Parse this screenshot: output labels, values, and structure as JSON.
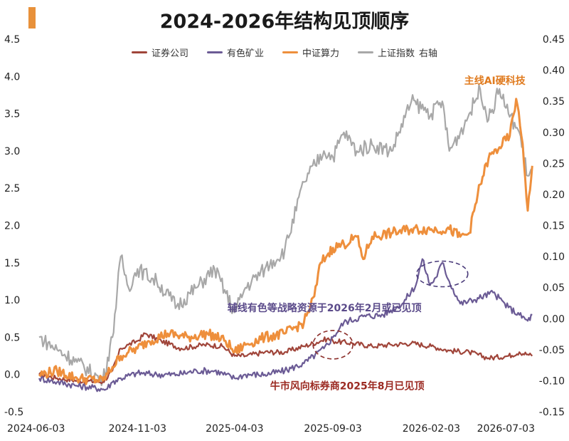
{
  "chart_data": {
    "type": "line",
    "title": "2024-2026年结构见顶顺序",
    "x_ticks": [
      "2024-06-03",
      "2024-11-03",
      "2025-04-03",
      "2025-09-03",
      "2026-02-03",
      "2026-07-03"
    ],
    "y_left": {
      "min": -0.5,
      "max": 4.5,
      "ticks": [
        "-0.5",
        "0.0",
        "0.5",
        "1.0",
        "1.5",
        "2.0",
        "2.5",
        "3.0",
        "3.5",
        "4.0",
        "4.5"
      ]
    },
    "y_right": {
      "label": "右轴",
      "min": -0.15,
      "max": 0.45,
      "ticks": [
        "-0.15",
        "-0.10",
        "-0.05",
        "0.00",
        "0.05",
        "0.10",
        "0.15",
        "0.20",
        "0.25",
        "0.30",
        "0.35",
        "0.40",
        "0.45"
      ]
    },
    "legend_position": "top-center",
    "series": [
      {
        "name": "证券公司",
        "color": "#A0453A",
        "axis": "left",
        "points": [
          [
            "2024-06-03",
            0.0
          ],
          [
            "2024-07-01",
            -0.05
          ],
          [
            "2024-08-01",
            -0.08
          ],
          [
            "2024-09-10",
            -0.1
          ],
          [
            "2024-09-25",
            0.05
          ],
          [
            "2024-10-08",
            0.35
          ],
          [
            "2024-10-20",
            0.4
          ],
          [
            "2024-11-03",
            0.45
          ],
          [
            "2024-11-15",
            0.55
          ],
          [
            "2024-12-10",
            0.45
          ],
          [
            "2025-01-10",
            0.35
          ],
          [
            "2025-02-15",
            0.4
          ],
          [
            "2025-03-15",
            0.38
          ],
          [
            "2025-04-03",
            0.25
          ],
          [
            "2025-04-20",
            0.25
          ],
          [
            "2025-05-20",
            0.3
          ],
          [
            "2025-06-20",
            0.3
          ],
          [
            "2025-07-20",
            0.38
          ],
          [
            "2025-08-15",
            0.45
          ],
          [
            "2025-08-25",
            0.48
          ],
          [
            "2025-09-03",
            0.45
          ],
          [
            "2025-10-03",
            0.42
          ],
          [
            "2025-11-03",
            0.38
          ],
          [
            "2025-12-03",
            0.4
          ],
          [
            "2026-01-03",
            0.42
          ],
          [
            "2026-02-03",
            0.38
          ],
          [
            "2026-03-03",
            0.32
          ],
          [
            "2026-04-03",
            0.3
          ],
          [
            "2026-05-03",
            0.22
          ],
          [
            "2026-06-03",
            0.25
          ],
          [
            "2026-06-20",
            0.3
          ],
          [
            "2026-07-03",
            0.27
          ],
          [
            "2026-07-10",
            0.25
          ]
        ]
      },
      {
        "name": "有色矿业",
        "color": "#6B5B95",
        "axis": "left",
        "points": [
          [
            "2024-06-03",
            -0.05
          ],
          [
            "2024-07-01",
            -0.1
          ],
          [
            "2024-08-01",
            -0.15
          ],
          [
            "2024-09-15",
            -0.2
          ],
          [
            "2024-09-25",
            -0.1
          ],
          [
            "2024-10-08",
            -0.05
          ],
          [
            "2024-11-03",
            0.02
          ],
          [
            "2024-12-03",
            0.0
          ],
          [
            "2025-01-03",
            0.0
          ],
          [
            "2025-02-03",
            0.05
          ],
          [
            "2025-03-03",
            0.05
          ],
          [
            "2025-04-03",
            -0.05
          ],
          [
            "2025-04-20",
            0.0
          ],
          [
            "2025-05-20",
            0.0
          ],
          [
            "2025-06-20",
            0.05
          ],
          [
            "2025-07-20",
            0.15
          ],
          [
            "2025-08-20",
            0.35
          ],
          [
            "2025-09-03",
            0.5
          ],
          [
            "2025-09-20",
            0.7
          ],
          [
            "2025-10-20",
            0.78
          ],
          [
            "2025-11-20",
            0.8
          ],
          [
            "2025-12-20",
            0.95
          ],
          [
            "2026-01-10",
            1.2
          ],
          [
            "2026-01-20",
            1.55
          ],
          [
            "2026-02-01",
            1.2
          ],
          [
            "2026-02-10",
            1.3
          ],
          [
            "2026-02-20",
            1.5
          ],
          [
            "2026-03-03",
            1.25
          ],
          [
            "2026-03-20",
            0.95
          ],
          [
            "2026-04-10",
            1.0
          ],
          [
            "2026-05-10",
            1.1
          ],
          [
            "2026-06-03",
            0.9
          ],
          [
            "2026-06-20",
            0.8
          ],
          [
            "2026-07-03",
            0.72
          ],
          [
            "2026-07-10",
            0.8
          ]
        ]
      },
      {
        "name": "中证算力",
        "color": "#EE8F3C",
        "axis": "left",
        "points": [
          [
            "2024-06-03",
            0.0
          ],
          [
            "2024-07-01",
            0.05
          ],
          [
            "2024-08-01",
            -0.05
          ],
          [
            "2024-09-10",
            -0.08
          ],
          [
            "2024-09-25",
            0.1
          ],
          [
            "2024-10-08",
            0.25
          ],
          [
            "2024-10-20",
            0.3
          ],
          [
            "2024-11-03",
            0.35
          ],
          [
            "2024-11-20",
            0.45
          ],
          [
            "2024-12-20",
            0.55
          ],
          [
            "2025-01-20",
            0.5
          ],
          [
            "2025-02-20",
            0.55
          ],
          [
            "2025-03-20",
            0.45
          ],
          [
            "2025-04-03",
            0.3
          ],
          [
            "2025-04-20",
            0.4
          ],
          [
            "2025-05-20",
            0.5
          ],
          [
            "2025-06-20",
            0.55
          ],
          [
            "2025-07-20",
            0.7
          ],
          [
            "2025-08-05",
            1.05
          ],
          [
            "2025-08-15",
            1.5
          ],
          [
            "2025-08-25",
            1.6
          ],
          [
            "2025-09-03",
            1.7
          ],
          [
            "2025-09-20",
            1.75
          ],
          [
            "2025-10-10",
            1.85
          ],
          [
            "2025-10-20",
            1.55
          ],
          [
            "2025-11-03",
            1.85
          ],
          [
            "2025-12-03",
            1.9
          ],
          [
            "2026-01-03",
            1.95
          ],
          [
            "2026-02-03",
            1.95
          ],
          [
            "2026-03-03",
            1.95
          ],
          [
            "2026-03-20",
            1.85
          ],
          [
            "2026-04-03",
            1.9
          ],
          [
            "2026-04-20",
            2.55
          ],
          [
            "2026-05-03",
            2.9
          ],
          [
            "2026-05-20",
            3.05
          ],
          [
            "2026-06-05",
            3.2
          ],
          [
            "2026-06-15",
            3.7
          ],
          [
            "2026-06-25",
            3.1
          ],
          [
            "2026-07-03",
            2.2
          ],
          [
            "2026-07-10",
            2.8
          ]
        ]
      },
      {
        "name": "上证指数",
        "color": "#A8A8A8",
        "axis": "right",
        "points": [
          [
            "2024-06-03",
            -0.03
          ],
          [
            "2024-07-01",
            -0.05
          ],
          [
            "2024-08-01",
            -0.07
          ],
          [
            "2024-09-10",
            -0.1
          ],
          [
            "2024-09-25",
            -0.03
          ],
          [
            "2024-10-08",
            0.1
          ],
          [
            "2024-10-20",
            0.05
          ],
          [
            "2024-11-03",
            0.08
          ],
          [
            "2024-12-03",
            0.06
          ],
          [
            "2025-01-03",
            0.02
          ],
          [
            "2025-02-03",
            0.05
          ],
          [
            "2025-03-03",
            0.08
          ],
          [
            "2025-04-03",
            0.01
          ],
          [
            "2025-04-20",
            0.05
          ],
          [
            "2025-05-20",
            0.08
          ],
          [
            "2025-06-20",
            0.11
          ],
          [
            "2025-07-20",
            0.22
          ],
          [
            "2025-08-20",
            0.27
          ],
          [
            "2025-09-03",
            0.26
          ],
          [
            "2025-09-20",
            0.3
          ],
          [
            "2025-10-10",
            0.27
          ],
          [
            "2025-11-03",
            0.28
          ],
          [
            "2025-12-03",
            0.27
          ],
          [
            "2026-01-03",
            0.35
          ],
          [
            "2026-02-03",
            0.33
          ],
          [
            "2026-02-20",
            0.35
          ],
          [
            "2026-03-03",
            0.27
          ],
          [
            "2026-03-20",
            0.3
          ],
          [
            "2026-04-03",
            0.33
          ],
          [
            "2026-04-20",
            0.37
          ],
          [
            "2026-05-03",
            0.32
          ],
          [
            "2026-05-20",
            0.37
          ],
          [
            "2026-06-03",
            0.33
          ],
          [
            "2026-06-20",
            0.3
          ],
          [
            "2026-07-03",
            0.23
          ],
          [
            "2026-07-10",
            0.24
          ]
        ]
      }
    ],
    "annotations": [
      {
        "text": "主线AI硬科技",
        "color": "#E07B1F",
        "anchor": [
          "2026-06-15",
          3.9
        ]
      },
      {
        "text": "辅线有色等战略资源于2026年2月或已见顶",
        "color": "#5B4B8A",
        "anchor": [
          "2025-09-03",
          0.85
        ]
      },
      {
        "text": "牛市风向标券商2025年8月已见顶",
        "color": "#9B2A22",
        "anchor": [
          "2025-09-03",
          -0.2
        ]
      }
    ],
    "highlight_ellipses": [
      {
        "name": "brokers-peak",
        "color": "#8B2E2A",
        "center": [
          "2025-09-03",
          0.4
        ]
      },
      {
        "name": "metals-peak",
        "color": "#4A3B7A",
        "center": [
          "2026-02-20",
          1.35
        ]
      }
    ]
  }
}
